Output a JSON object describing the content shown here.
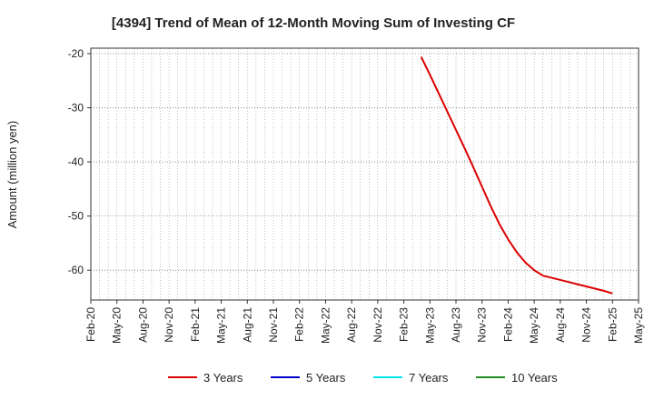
{
  "chart_data": {
    "type": "line",
    "title": "[4394]  Trend of Mean of 12-Month Moving Sum of Investing CF",
    "xlabel": "",
    "ylabel": "Amount (million yen)",
    "ylim": [
      -65.5,
      -19
    ],
    "yticks": [
      -20,
      -30,
      -40,
      -50,
      -60
    ],
    "ytick_labels": [
      "-20",
      "-30",
      "-40",
      "-50",
      "-60"
    ],
    "xlim": [
      "2020-02",
      "2025-05"
    ],
    "xtick_labels": [
      "Feb-20",
      "May-20",
      "Aug-20",
      "Nov-20",
      "Feb-21",
      "May-21",
      "Aug-21",
      "Nov-21",
      "Feb-22",
      "May-22",
      "Aug-22",
      "Nov-22",
      "Feb-23",
      "May-23",
      "Aug-23",
      "Nov-23",
      "Feb-24",
      "May-24",
      "Aug-24",
      "Nov-24",
      "Feb-25",
      "May-25"
    ],
    "grid": true,
    "legend_position": "bottom",
    "series": [
      {
        "name": "3 Years",
        "color": "#dd0000",
        "points": [
          [
            "2023-04",
            -20.6
          ],
          [
            "2023-05",
            -23.9
          ],
          [
            "2023-06",
            -27.3
          ],
          [
            "2023-07",
            -30.7
          ],
          [
            "2023-08",
            -34.1
          ],
          [
            "2023-09",
            -37.5
          ],
          [
            "2023-10",
            -41.0
          ],
          [
            "2023-11",
            -44.6
          ],
          [
            "2023-12",
            -48.2
          ],
          [
            "2024-01",
            -51.5
          ],
          [
            "2024-02",
            -54.3
          ],
          [
            "2024-03",
            -56.7
          ],
          [
            "2024-04",
            -58.6
          ],
          [
            "2024-05",
            -60.0
          ],
          [
            "2024-06",
            -61.0
          ],
          [
            "2024-07",
            -61.4
          ],
          [
            "2024-08",
            -61.8
          ],
          [
            "2024-09",
            -62.2
          ],
          [
            "2024-10",
            -62.6
          ],
          [
            "2024-11",
            -63.0
          ],
          [
            "2024-12",
            -63.4
          ],
          [
            "2025-01",
            -63.8
          ],
          [
            "2025-02",
            -64.3
          ]
        ]
      },
      {
        "name": "5 Years",
        "color": "#0000cc",
        "points": []
      },
      {
        "name": "7 Years",
        "color": "#00e5ee",
        "points": []
      },
      {
        "name": "10 Years",
        "color": "#228b22",
        "points": []
      }
    ]
  }
}
